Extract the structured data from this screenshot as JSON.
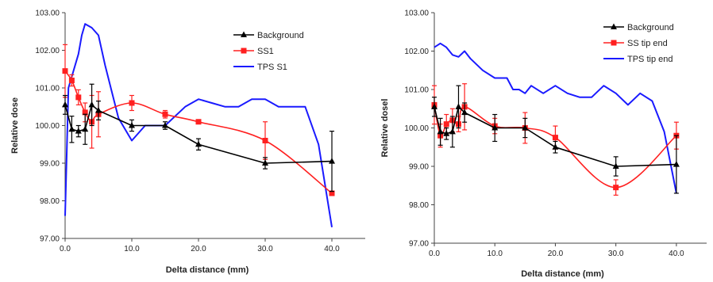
{
  "chart_data": [
    {
      "type": "line",
      "xlabel": "Delta distance (mm)",
      "ylabel": "Relative dose",
      "xlim": [
        0,
        45
      ],
      "ylim": [
        97,
        103
      ],
      "xticks": [
        "0.0",
        "10.0",
        "20.0",
        "30.0",
        "40.0"
      ],
      "xtick_values": [
        0,
        10,
        20,
        30,
        40
      ],
      "yticks": [
        "97.00",
        "98.00",
        "99.00",
        "100.00",
        "101.00",
        "102.00",
        "103.00"
      ],
      "ytick_values": [
        97,
        98,
        99,
        100,
        101,
        102,
        103
      ],
      "grid": false,
      "legend_position": "top-right",
      "series": [
        {
          "name": "Background",
          "color": "#000000",
          "marker": "triangle",
          "smooth": false,
          "x": [
            0,
            1,
            2,
            3,
            4,
            5,
            10,
            15,
            20,
            30,
            40
          ],
          "y": [
            100.55,
            99.9,
            99.85,
            99.9,
            100.55,
            100.4,
            100.0,
            100.0,
            99.5,
            99.0,
            99.05
          ],
          "err": [
            0.25,
            0.35,
            0.15,
            0.4,
            0.55,
            0.25,
            0.15,
            0.1,
            0.15,
            0.15,
            0.8
          ]
        },
        {
          "name": "SS1",
          "color": "#ff2020",
          "marker": "square",
          "smooth": true,
          "x": [
            0,
            1,
            2,
            3,
            4,
            5,
            10,
            15,
            20,
            30,
            40
          ],
          "y": [
            101.45,
            101.2,
            100.75,
            100.35,
            100.1,
            100.3,
            100.6,
            100.3,
            100.1,
            99.6,
            98.2
          ],
          "err": [
            0.7,
            0.15,
            0.2,
            0.25,
            0.7,
            0.6,
            0.2,
            0.1,
            0.05,
            0.5,
            0.05
          ]
        },
        {
          "name": "TPS S1",
          "color": "#1a1aff",
          "marker": "none",
          "smooth": false,
          "x": [
            0,
            0.5,
            1,
            2,
            2.5,
            3,
            4,
            5,
            6,
            8,
            10,
            11,
            12,
            15,
            18,
            20,
            22,
            24,
            26,
            28,
            30,
            32,
            34,
            36,
            38,
            40
          ],
          "y": [
            97.6,
            101.0,
            101.3,
            101.9,
            102.4,
            102.7,
            102.6,
            102.4,
            101.6,
            100.2,
            99.6,
            99.8,
            100.0,
            100.0,
            100.5,
            100.7,
            100.6,
            100.5,
            100.5,
            100.7,
            100.7,
            100.5,
            100.5,
            100.5,
            99.5,
            97.3
          ]
        }
      ]
    },
    {
      "type": "line",
      "xlabel": "Delta distance (mm)",
      "ylabel": "Relative dosel",
      "xlim": [
        0,
        45
      ],
      "ylim": [
        97,
        103
      ],
      "xticks": [
        "0.0",
        "10.0",
        "20.0",
        "30.0",
        "40.0"
      ],
      "xtick_values": [
        0,
        10,
        20,
        30,
        40
      ],
      "yticks": [
        "97.00",
        "98.00",
        "99.00",
        "100.00",
        "101.00",
        "102.00",
        "103.00"
      ],
      "ytick_values": [
        97,
        98,
        99,
        100,
        101,
        102,
        103
      ],
      "grid": false,
      "legend_position": "top-right",
      "series": [
        {
          "name": "Background",
          "color": "#000000",
          "marker": "triangle",
          "smooth": false,
          "x": [
            0,
            1,
            2,
            3,
            4,
            5,
            10,
            15,
            20,
            30,
            40
          ],
          "y": [
            100.55,
            99.9,
            99.85,
            99.9,
            100.55,
            100.4,
            100.0,
            100.0,
            99.5,
            99.0,
            99.05
          ],
          "err": [
            0.25,
            0.35,
            0.15,
            0.4,
            0.55,
            0.25,
            0.35,
            0.25,
            0.15,
            0.25,
            0.75
          ]
        },
        {
          "name": "SS tip end",
          "color": "#ff2020",
          "marker": "square",
          "smooth": true,
          "x": [
            0,
            1,
            2,
            3,
            4,
            5,
            10,
            15,
            20,
            30,
            40
          ],
          "y": [
            100.6,
            99.8,
            100.1,
            100.2,
            100.1,
            100.55,
            100.05,
            100.0,
            99.75,
            98.45,
            99.8
          ],
          "err": [
            0.5,
            0.3,
            0.25,
            0.3,
            0.2,
            0.6,
            0.2,
            0.4,
            0.3,
            0.2,
            0.35
          ]
        },
        {
          "name": "TPS tip end",
          "color": "#1a1aff",
          "marker": "none",
          "smooth": false,
          "x": [
            0,
            1,
            2,
            3,
            4,
            5,
            6,
            8,
            10,
            12,
            13,
            14,
            15,
            16,
            18,
            20,
            22,
            24,
            26,
            28,
            30,
            32,
            34,
            36,
            38,
            40
          ],
          "y": [
            102.1,
            102.2,
            102.1,
            101.9,
            101.85,
            102.0,
            101.8,
            101.5,
            101.3,
            101.3,
            101.0,
            101.0,
            100.9,
            101.1,
            100.9,
            101.1,
            100.9,
            100.8,
            100.8,
            101.1,
            100.9,
            100.6,
            100.9,
            100.7,
            99.9,
            98.3
          ]
        }
      ]
    }
  ]
}
